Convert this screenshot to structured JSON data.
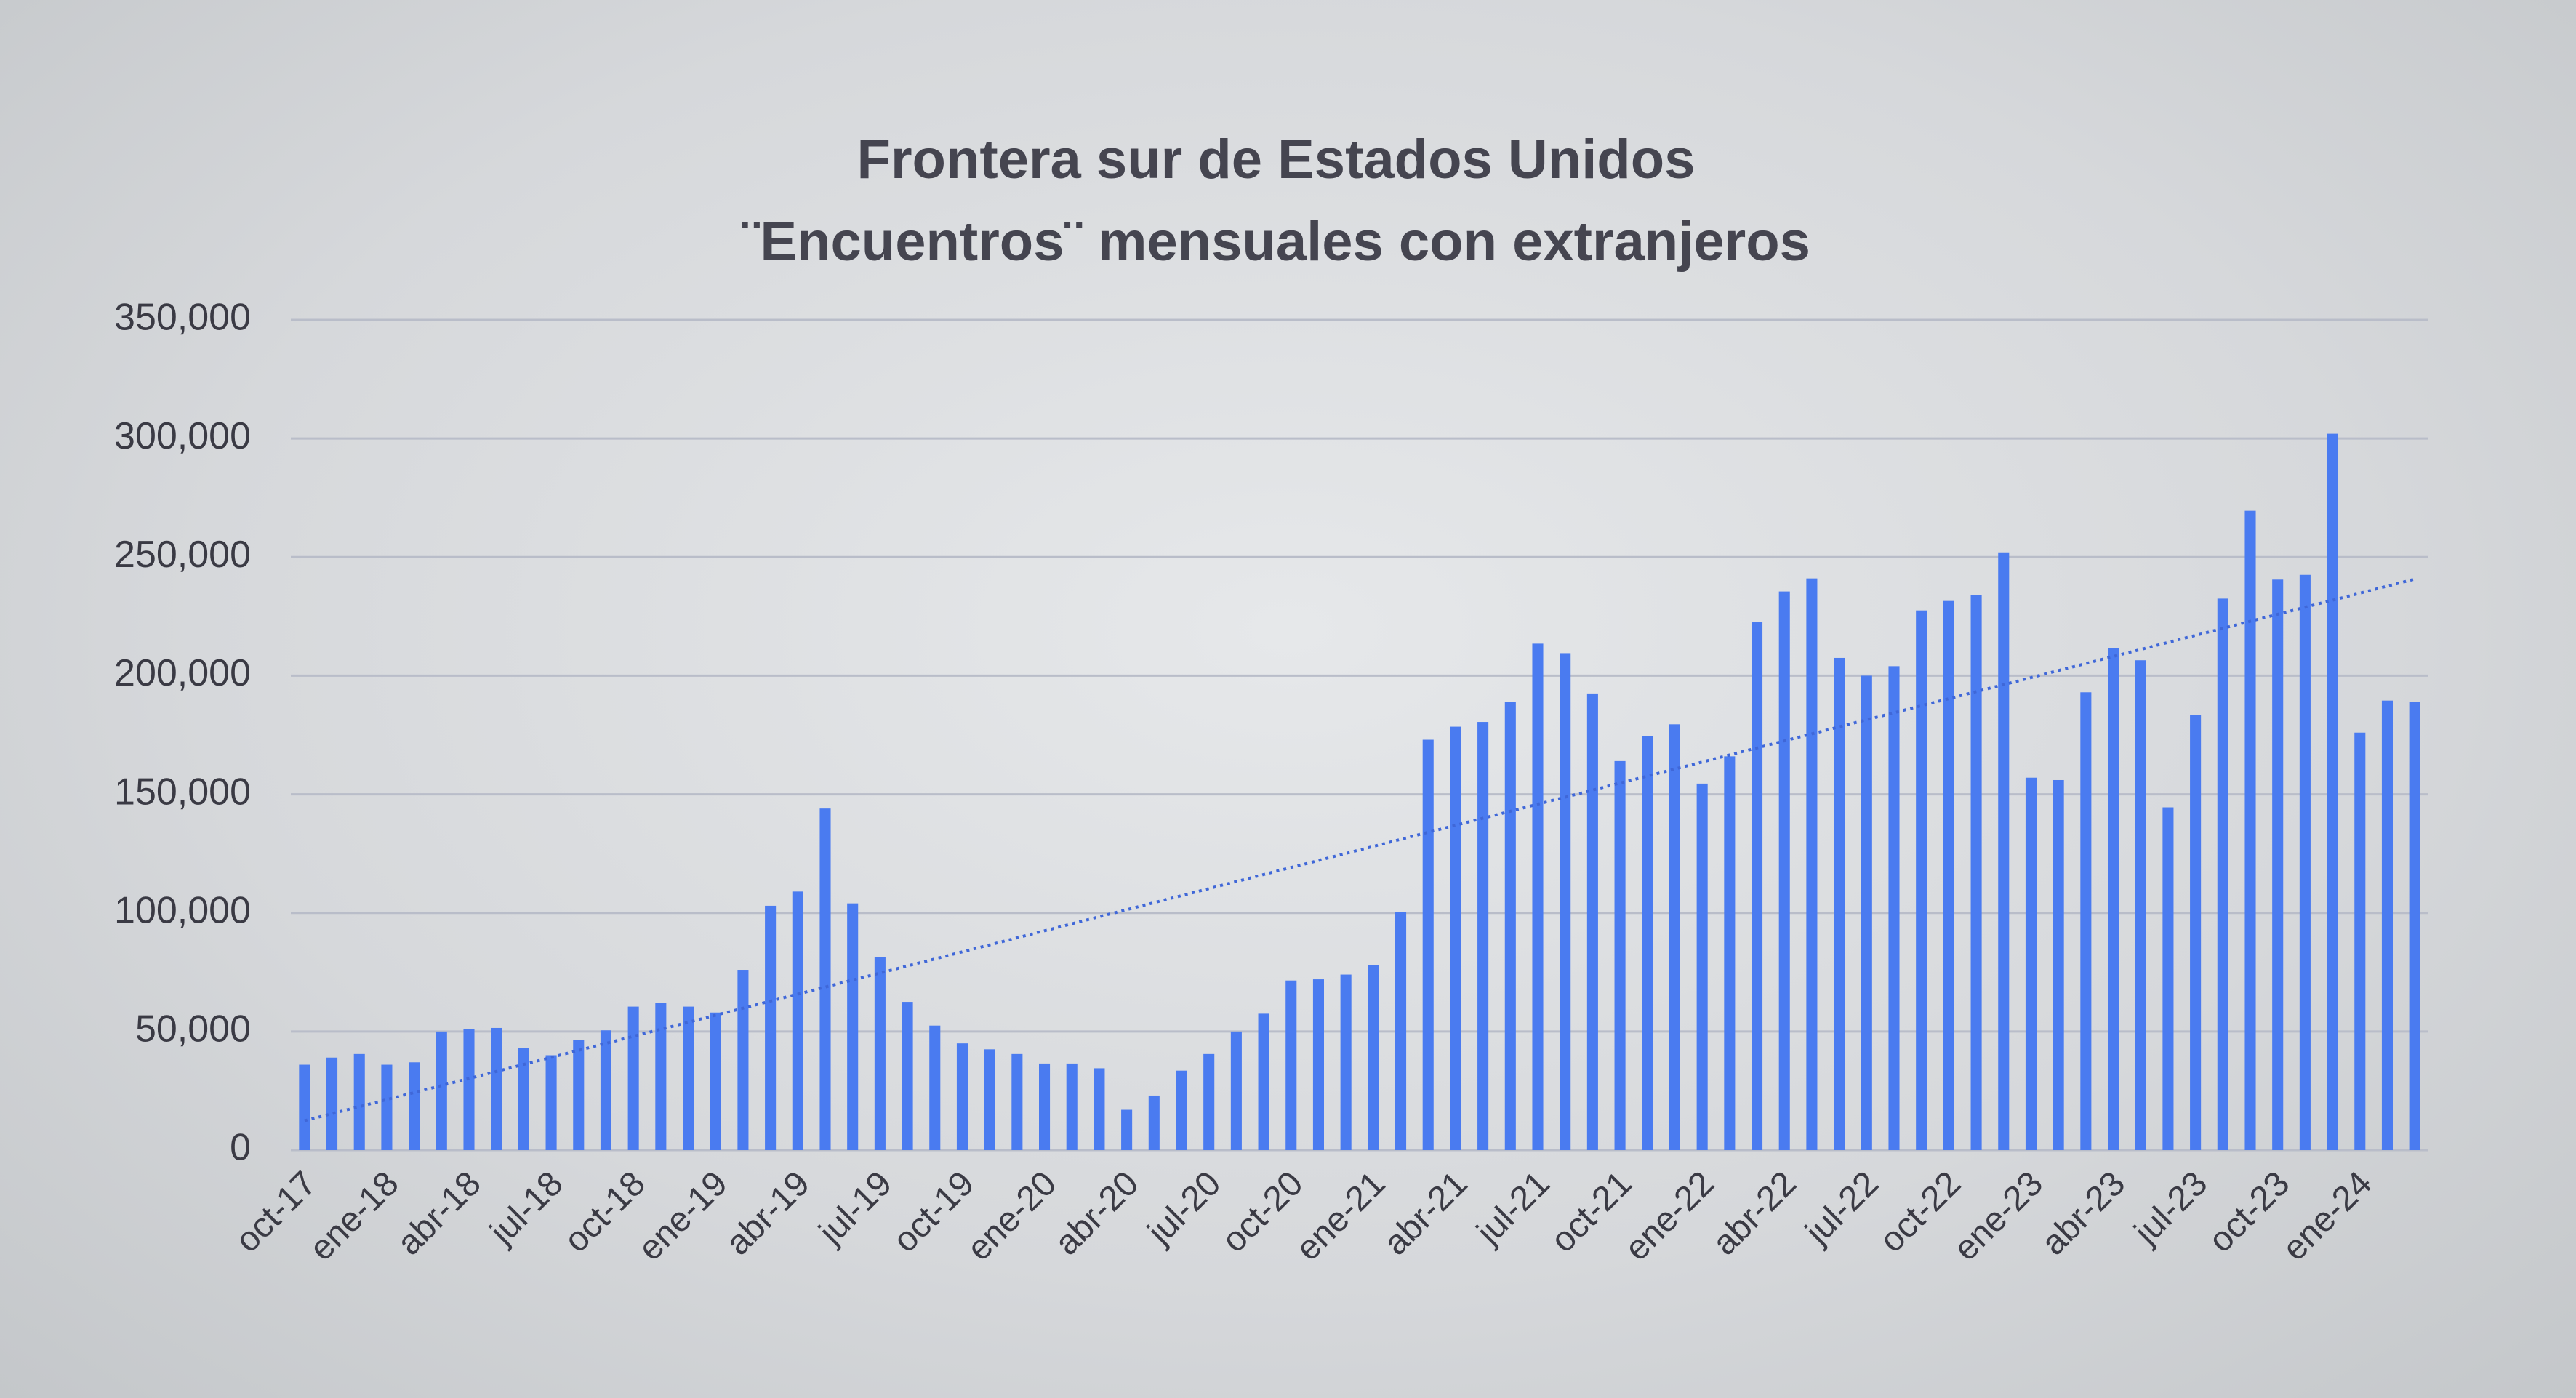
{
  "chart_data": {
    "type": "bar",
    "title": "Frontera sur de Estados Unidos",
    "subtitle": "¨Encuentros¨ mensuales con extranjeros",
    "categories": [
      "oct-17",
      null,
      null,
      "ene-18",
      null,
      null,
      "abr-18",
      null,
      null,
      "jul-18",
      null,
      null,
      "oct-18",
      null,
      null,
      "ene-19",
      null,
      null,
      "abr-19",
      null,
      null,
      "jul-19",
      null,
      null,
      "oct-19",
      null,
      null,
      "ene-20",
      null,
      null,
      "abr-20",
      null,
      null,
      "jul-20",
      null,
      null,
      "oct-20",
      null,
      null,
      "ene-21",
      null,
      null,
      "abr-21",
      null,
      null,
      "jul-21",
      null,
      null,
      "oct-21",
      null,
      null,
      "ene-22",
      null,
      null,
      "abr-22",
      null,
      null,
      "jul-22",
      null,
      null,
      "oct-22",
      null,
      null,
      "ene-23",
      null,
      null,
      "abr-23",
      null,
      null,
      "jul-23",
      null,
      null,
      "oct-23",
      null,
      null,
      "ene-24",
      null,
      null
    ],
    "values": [
      36000,
      39000,
      40500,
      36000,
      37000,
      50000,
      51000,
      51500,
      43000,
      40000,
      46500,
      50500,
      60500,
      62000,
      60500,
      58000,
      76000,
      103000,
      109000,
      144000,
      104000,
      81500,
      62500,
      52500,
      45000,
      42500,
      40500,
      36500,
      36500,
      34500,
      17000,
      23000,
      33500,
      40500,
      50000,
      57500,
      71500,
      72000,
      74000,
      78000,
      100500,
      173000,
      178500,
      180500,
      189000,
      213500,
      209500,
      192500,
      164000,
      174500,
      179500,
      154500,
      166000,
      222500,
      235500,
      241000,
      207500,
      200000,
      204000,
      227500,
      231500,
      234000,
      252000,
      157000,
      156000,
      193000,
      211500,
      206500,
      144500,
      183500,
      232500,
      269500,
      240500,
      242500,
      302000,
      176000,
      189500,
      189000
    ],
    "color": "#4a7bf0",
    "ylim": [
      0,
      350000
    ],
    "yticks": [
      0,
      {
        "value": 50000,
        "label": "50,000"
      },
      {
        "value": 100000,
        "label": "100,000"
      },
      {
        "value": 150000,
        "label": "150,000"
      },
      {
        "value": 200000,
        "label": "200,000"
      },
      {
        "value": 250000,
        "label": "250,000"
      },
      {
        "value": 300000,
        "label": "300,000"
      },
      {
        "value": 350000,
        "label": "350,000"
      }
    ],
    "grid": true,
    "trendline": true
  }
}
